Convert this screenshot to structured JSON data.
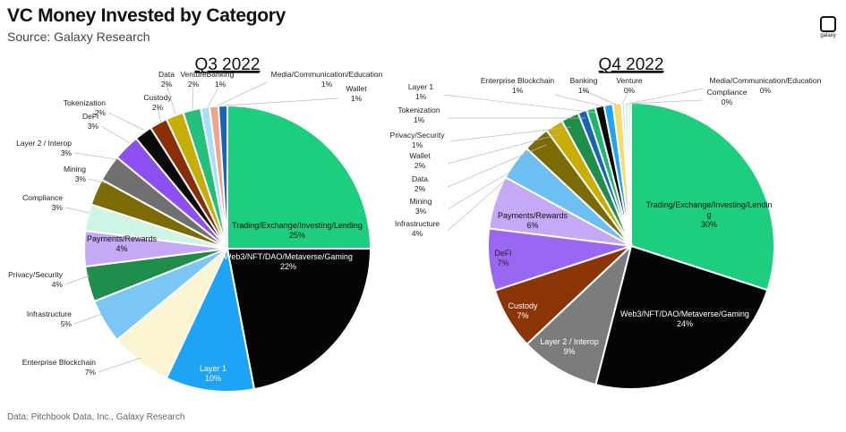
{
  "title": "VC Money Invested by Category",
  "subtitle": "Source: Galaxy Research",
  "footer": "Data: Pitchbook Data, Inc., Galaxy Research",
  "logo_text": "galaxy",
  "chart_data": [
    {
      "type": "pie",
      "title": "Q3 2022",
      "slices": [
        {
          "label": "Trading/Exchange/Investing/Lending",
          "value": 25,
          "pct": "25%",
          "color": "#1dce7e"
        },
        {
          "label": "Web3/NFT/DAO/Metaverse/Gaming",
          "value": 22,
          "pct": "22%",
          "color": "#050505"
        },
        {
          "label": "Layer 1",
          "value": 10,
          "pct": "10%",
          "color": "#1ea3f5"
        },
        {
          "label": "Enterprise Blockchain",
          "value": 7,
          "pct": "7%",
          "color": "#fbf5d3"
        },
        {
          "label": "Infrastructure",
          "value": 5,
          "pct": "5%",
          "color": "#7cc6f5"
        },
        {
          "label": "Privacy/Security",
          "value": 4,
          "pct": "4%",
          "color": "#1f8d4c"
        },
        {
          "label": "Payments/Rewards",
          "value": 4,
          "pct": "4%",
          "color": "#c5a8f6"
        },
        {
          "label": "Compliance",
          "value": 3,
          "pct": "3%",
          "color": "#cef4e6"
        },
        {
          "label": "Mining",
          "value": 3,
          "pct": "3%",
          "color": "#7c6a04"
        },
        {
          "label": "Layer 2 / Interop",
          "value": 3,
          "pct": "3%",
          "color": "#707070"
        },
        {
          "label": "DeFi",
          "value": 3,
          "pct": "3%",
          "color": "#8c4ff0"
        },
        {
          "label": "Tokenization",
          "value": 2,
          "pct": "2%",
          "color": "#0a0a0a"
        },
        {
          "label": "Custody",
          "value": 2,
          "pct": "2%",
          "color": "#8b2e07"
        },
        {
          "label": "Data",
          "value": 2,
          "pct": "2%",
          "color": "#c8ad05"
        },
        {
          "label": "Venture",
          "value": 2,
          "pct": "2%",
          "color": "#23c07d"
        },
        {
          "label": "Banking",
          "value": 1,
          "pct": "1%",
          "color": "#a8dff7"
        },
        {
          "label": "Media/Communication/Education",
          "value": 1,
          "pct": "1%",
          "color": "#f2a48a"
        },
        {
          "label": "Wallet",
          "value": 1,
          "pct": "1%",
          "color": "#1765b5"
        }
      ]
    },
    {
      "type": "pie",
      "title": "Q4 2022",
      "slices": [
        {
          "label": "Trading/Exchange/Investing/Lending",
          "value": 30,
          "pct": "30%",
          "color": "#1dce7e"
        },
        {
          "label": "Web3/NFT/DAO/Metaverse/Gaming",
          "value": 24,
          "pct": "24%",
          "color": "#050505"
        },
        {
          "label": "Layer 2 / Interop",
          "value": 9,
          "pct": "9%",
          "color": "#7c7c7c"
        },
        {
          "label": "Custody",
          "value": 7,
          "pct": "7%",
          "color": "#8b3506"
        },
        {
          "label": "DeFi",
          "value": 7,
          "pct": "7%",
          "color": "#9a67f2"
        },
        {
          "label": "Payments/Rewards",
          "value": 6,
          "pct": "6%",
          "color": "#c5a8f6"
        },
        {
          "label": "Infrastructure",
          "value": 4,
          "pct": "4%",
          "color": "#6cbff2"
        },
        {
          "label": "Mining",
          "value": 3,
          "pct": "3%",
          "color": "#7c6a04"
        },
        {
          "label": "Data",
          "value": 2,
          "pct": "2%",
          "color": "#c8ad05"
        },
        {
          "label": "Wallet",
          "value": 2,
          "pct": "2%",
          "color": "#1f8d4c"
        },
        {
          "label": "Privacy/Security",
          "value": 1,
          "pct": "1%",
          "color": "#1765b5"
        },
        {
          "label": "Tokenization",
          "value": 1,
          "pct": "1%",
          "color": "#20b672"
        },
        {
          "label": "Layer 1",
          "value": 1,
          "pct": "1%",
          "color": "#0a0a0a"
        },
        {
          "label": "Enterprise Blockchain",
          "value": 1,
          "pct": "1%",
          "color": "#1ea3f5"
        },
        {
          "label": "Banking",
          "value": 1,
          "pct": "1%",
          "color": "#f5dc6b"
        },
        {
          "label": "Venture",
          "value": 0,
          "pct": "0%",
          "color": "#bfe3f7"
        },
        {
          "label": "Media/Communication/Education",
          "value": 0,
          "pct": "0%",
          "color": "#b7ecd5"
        },
        {
          "label": "Compliance",
          "value": 0,
          "pct": "0%",
          "color": "#d6f3e6"
        }
      ]
    }
  ]
}
